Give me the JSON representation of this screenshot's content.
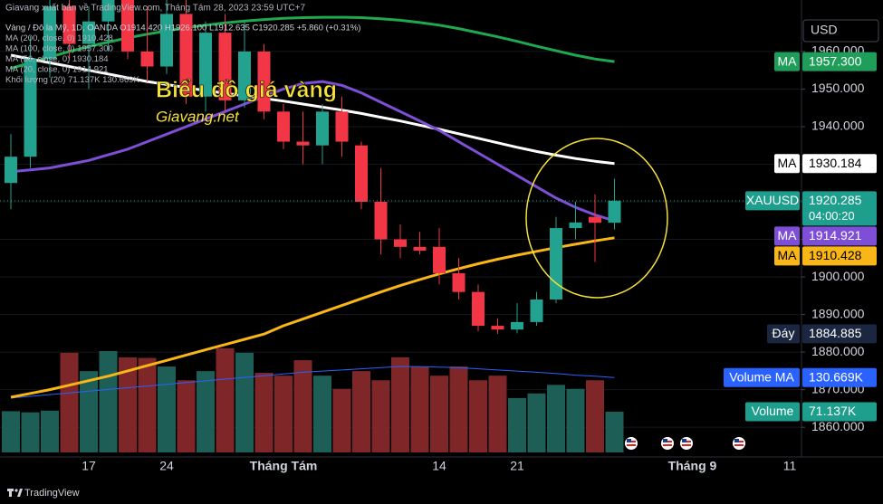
{
  "chart_data": {
    "type": "candlestick",
    "header": "Giavang xuất bản về TradingView.com, Tháng Tám 28, 2023 23:59 UTC+7",
    "legend_lines": [
      "Vàng / Đô la Mỹ, 1D, OANDA  O1914.420 H1926.100 L1912.635 C1920.285 +5.860 (+0.31%)",
      "MA (200, close, 0)  1910.428",
      "MA (100, close, 0)  1957.300",
      "MA (50, close, 0)  1930.184",
      "MA (20, close, 0)  1914.921",
      "Khối lượng (20)  71.137K  130.669K"
    ],
    "overlay_title": "Biểu đồ giá vàng",
    "overlay_subtitle": "Giavang.net",
    "currency": "USD",
    "footer": "TradingView",
    "categories": [
      null,
      null,
      null,
      null,
      "17",
      null,
      null,
      null,
      "24",
      null,
      null,
      null,
      null,
      null,
      "Tháng Tám",
      null,
      null,
      null,
      null,
      null,
      null,
      null,
      "14",
      null,
      null,
      null,
      "21",
      null,
      null,
      null,
      null,
      null,
      null,
      null,
      null,
      "Tháng 9",
      null,
      null,
      null,
      null,
      "11"
    ],
    "open": [
      1925,
      1932,
      1958,
      1972,
      1962,
      1968,
      1978,
      1960,
      1956,
      1970,
      1948,
      1965,
      1947,
      1960,
      1944,
      1936,
      1935,
      1944,
      1935,
      1920,
      1910,
      1908,
      1908,
      1901,
      1896,
      1887,
      1886,
      1888,
      1894,
      1913,
      1916,
      1914.42,
      null,
      null,
      null,
      null,
      null,
      null,
      null,
      null,
      null
    ],
    "high": [
      1938,
      1964,
      1976,
      1980,
      1972,
      1983,
      1985,
      1972,
      1975,
      1975,
      1968,
      1970,
      1968,
      1962,
      1946,
      1944,
      1946,
      1948,
      1936,
      1929,
      1914,
      1912,
      1913,
      1905,
      1898,
      1889,
      1893,
      1896,
      1916,
      1920,
      1922,
      1926.1,
      null,
      null,
      null,
      null,
      null,
      null,
      null,
      null,
      null
    ],
    "low": [
      1918,
      1929,
      1953,
      1958,
      1950,
      1960,
      1958,
      1952,
      1954,
      1946,
      1944,
      1944,
      1945,
      1942,
      1934,
      1930,
      1930,
      1932,
      1918,
      1906,
      1905,
      1906,
      1898,
      1894,
      1885.5,
      1884.885,
      1885,
      1887,
      1893,
      1910,
      1904,
      1912.635,
      null,
      null,
      null,
      null,
      null,
      null,
      null,
      null,
      null
    ],
    "close": [
      1932,
      1958,
      1972,
      1962,
      1968,
      1978,
      1960,
      1956,
      1970,
      1948,
      1965,
      1947,
      1960,
      1944,
      1936,
      1935,
      1944,
      1936,
      1920,
      1910,
      1908,
      1907,
      1901,
      1896,
      1887,
      1886,
      1888,
      1894,
      1913,
      1914.5,
      1914.42,
      1920.285,
      null,
      null,
      null,
      null,
      null,
      null,
      null,
      null,
      null
    ],
    "up_color": "#22a28f",
    "down_color": "#f23645",
    "volume_up_color": "#1d5e57",
    "volume_down_color": "#7f2629",
    "volume": [
      72,
      70,
      73,
      174,
      142,
      177,
      166,
      165,
      150,
      126,
      142,
      182,
      174,
      139,
      134,
      161,
      134,
      111,
      142,
      126,
      166,
      150,
      134,
      150,
      126,
      134,
      95,
      103,
      118,
      111,
      126,
      71.137,
      null,
      null,
      null,
      null,
      null,
      null,
      null,
      null,
      null
    ],
    "volume_ma": {
      "color": "#2962ff",
      "values": [
        95,
        98,
        101,
        104,
        107,
        110,
        113,
        116,
        119,
        122,
        125,
        128,
        131,
        134,
        137,
        140,
        142,
        144,
        146,
        148,
        150,
        150,
        149,
        148,
        146,
        144,
        142,
        140,
        138,
        135,
        133,
        130.669,
        null,
        null,
        null,
        null,
        null,
        null,
        null,
        null,
        null
      ]
    },
    "series": [
      {
        "name": "MA (100, close, 0)",
        "color": "#1fa84f",
        "values": [
          1955.5,
          1957,
          1958.5,
          1960,
          1961.3,
          1962.5,
          1963.6,
          1964.6,
          1965.5,
          1966.3,
          1967,
          1967.6,
          1968.1,
          1968.5,
          1968.8,
          1969,
          1969.1,
          1969.1,
          1969,
          1968.7,
          1968.3,
          1967.7,
          1967,
          1966.1,
          1965,
          1963.9,
          1962.7,
          1961.4,
          1960.2,
          1959,
          1958,
          1957.3,
          null,
          null,
          null,
          null,
          null,
          null,
          null,
          null,
          null
        ]
      },
      {
        "name": "MA (50, close, 0)",
        "color": "#ffffff",
        "values": [
          1959,
          1958,
          1957,
          1956,
          1955,
          1954,
          1953,
          1952,
          1951.2,
          1950.4,
          1949.6,
          1948.9,
          1948.2,
          1947.5,
          1946.8,
          1946,
          1945.2,
          1944.4,
          1943.5,
          1942.5,
          1941.5,
          1940.4,
          1939.3,
          1938.1,
          1936.9,
          1935.7,
          1934.5,
          1933.4,
          1932.4,
          1931.5,
          1930.8,
          1930.184,
          null,
          null,
          null,
          null,
          null,
          null,
          null,
          null,
          null
        ]
      },
      {
        "name": "MA (20, close, 0)",
        "color": "#7e4fd6",
        "values": [
          1928,
          1928.5,
          1929,
          1930,
          1931,
          1932.5,
          1934,
          1936,
          1938,
          1940,
          1942,
          1944,
          1946,
          1948,
          1950,
          1951.5,
          1952,
          1951,
          1949,
          1946.5,
          1944,
          1941.5,
          1939,
          1936,
          1933,
          1930,
          1927,
          1924,
          1921,
          1918.5,
          1916.5,
          1914.921,
          null,
          null,
          null,
          null,
          null,
          null,
          null,
          null,
          null
        ]
      },
      {
        "name": "MA (200, close, 0)",
        "color": "#f9b617",
        "values": [
          1868,
          1869,
          1870,
          1871.2,
          1872.4,
          1873.6,
          1875,
          1876.4,
          1877.8,
          1879.2,
          1880.6,
          1882,
          1883.4,
          1884.8,
          1887,
          1888.8,
          1890.6,
          1892.4,
          1894.2,
          1896,
          1897.7,
          1899.3,
          1900.8,
          1902.2,
          1903.5,
          1904.7,
          1905.8,
          1906.8,
          1907.8,
          1908.7,
          1909.6,
          1910.428,
          null,
          null,
          null,
          null,
          null,
          null,
          null,
          null,
          null
        ]
      }
    ],
    "ylim": [
      1853.3,
      1973.7
    ],
    "yticks": [
      {
        "value": 1860,
        "label": "1860.000"
      },
      {
        "value": 1870,
        "label": "1870.000"
      },
      {
        "value": 1880,
        "label": "1880.000"
      },
      {
        "value": 1890,
        "label": "1890.000"
      },
      {
        "value": 1900,
        "label": "1900.000"
      },
      {
        "value": 1910,
        "label": "1910.000"
      },
      {
        "value": 1920,
        "label": "1920.000"
      },
      {
        "value": 1930,
        "label": "1930.000"
      },
      {
        "value": 1940,
        "label": "1940.000"
      },
      {
        "value": 1950,
        "label": "1950.000"
      },
      {
        "value": 1960,
        "label": "1960.000"
      }
    ],
    "volume_lim": [
      0,
      790
    ],
    "grid": true,
    "price_labels": [
      {
        "name": "MA",
        "value": 1957.3,
        "label": "1957.300",
        "color": "#1f9e5a",
        "text_color": "#ffffff"
      },
      {
        "name": "MA",
        "value": 1930.184,
        "label": "1930.184",
        "color": "#ffffff",
        "text_color": "#000000"
      },
      {
        "name": "XAUUSD",
        "value": 1920.285,
        "label": "1920.285",
        "countdown": "04:00:20",
        "color": "#1e9f8e",
        "text_color": "#ffffff"
      },
      {
        "name": "MA",
        "value": 1914.921,
        "label": "1914.921",
        "color": "#7e4fd6",
        "text_color": "#ffffff"
      },
      {
        "name": "MA",
        "value": 1910.428,
        "label": "1910.428",
        "color": "#f9b617",
        "text_color": "#000000"
      },
      {
        "name": "Đáy",
        "value": 1884.885,
        "label": "1884.885",
        "color": "#1b2640",
        "text_color": "#ffffff"
      },
      {
        "name": "Volume MA",
        "value": 130.669,
        "label": "130.669K",
        "axis": "volume",
        "color": "#2962ff",
        "text_color": "#ffffff"
      },
      {
        "name": "Volume",
        "value": 71.137,
        "label": "71.137K",
        "axis": "volume",
        "color": "#1e9f8e",
        "text_color": "#ffffff"
      }
    ]
  }
}
